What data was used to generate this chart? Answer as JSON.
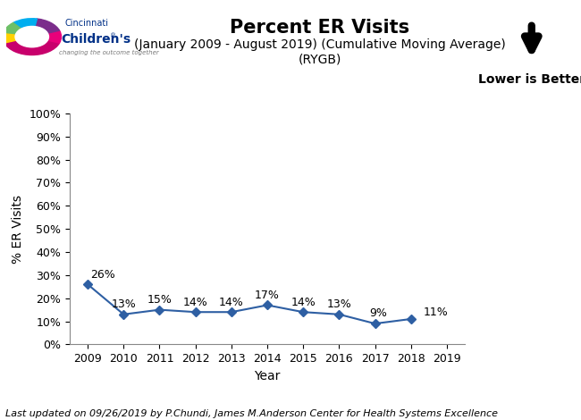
{
  "title": "Percent ER Visits",
  "subtitle1": "(January 2009 - August 2019) (Cumulative Moving Average)",
  "subtitle2": "(RYGB)",
  "xlabel": "Year",
  "ylabel": "% ER Visits",
  "footer": "Last updated on 09/26/2019 by P.Chundi, James M.Anderson Center for Health Systems Excellence",
  "lower_is_better": "Lower is Better",
  "x": [
    2009,
    2010,
    2011,
    2012,
    2013,
    2014,
    2015,
    2016,
    2017,
    2018
  ],
  "y": [
    0.26,
    0.13,
    0.15,
    0.14,
    0.14,
    0.17,
    0.14,
    0.13,
    0.09,
    0.11
  ],
  "labels": [
    "",
    "13%",
    "15%",
    "14%",
    "14%",
    "17%",
    "14%",
    "13%",
    "9%",
    "11%"
  ],
  "label_first": "26%",
  "line_color": "#2E5FA3",
  "marker_color": "#2E5FA3",
  "bg_color": "#FFFFFF",
  "ylim": [
    0,
    1.0
  ],
  "yticks": [
    0.0,
    0.1,
    0.2,
    0.3,
    0.4,
    0.5,
    0.6,
    0.7,
    0.8,
    0.9,
    1.0
  ],
  "ytick_labels": [
    "0%",
    "10%",
    "20%",
    "30%",
    "40%",
    "50%",
    "60%",
    "70%",
    "80%",
    "90%",
    "100%"
  ],
  "xticks": [
    2009,
    2010,
    2011,
    2012,
    2013,
    2014,
    2015,
    2016,
    2017,
    2018,
    2019
  ],
  "title_fontsize": 15,
  "subtitle_fontsize": 10,
  "axis_label_fontsize": 10,
  "tick_fontsize": 9,
  "footer_fontsize": 8,
  "annotation_fontsize": 9,
  "logo_cincinnati_color": "#003087",
  "logo_childrens_color": "#003087",
  "logo_tagline_color": "#555555"
}
